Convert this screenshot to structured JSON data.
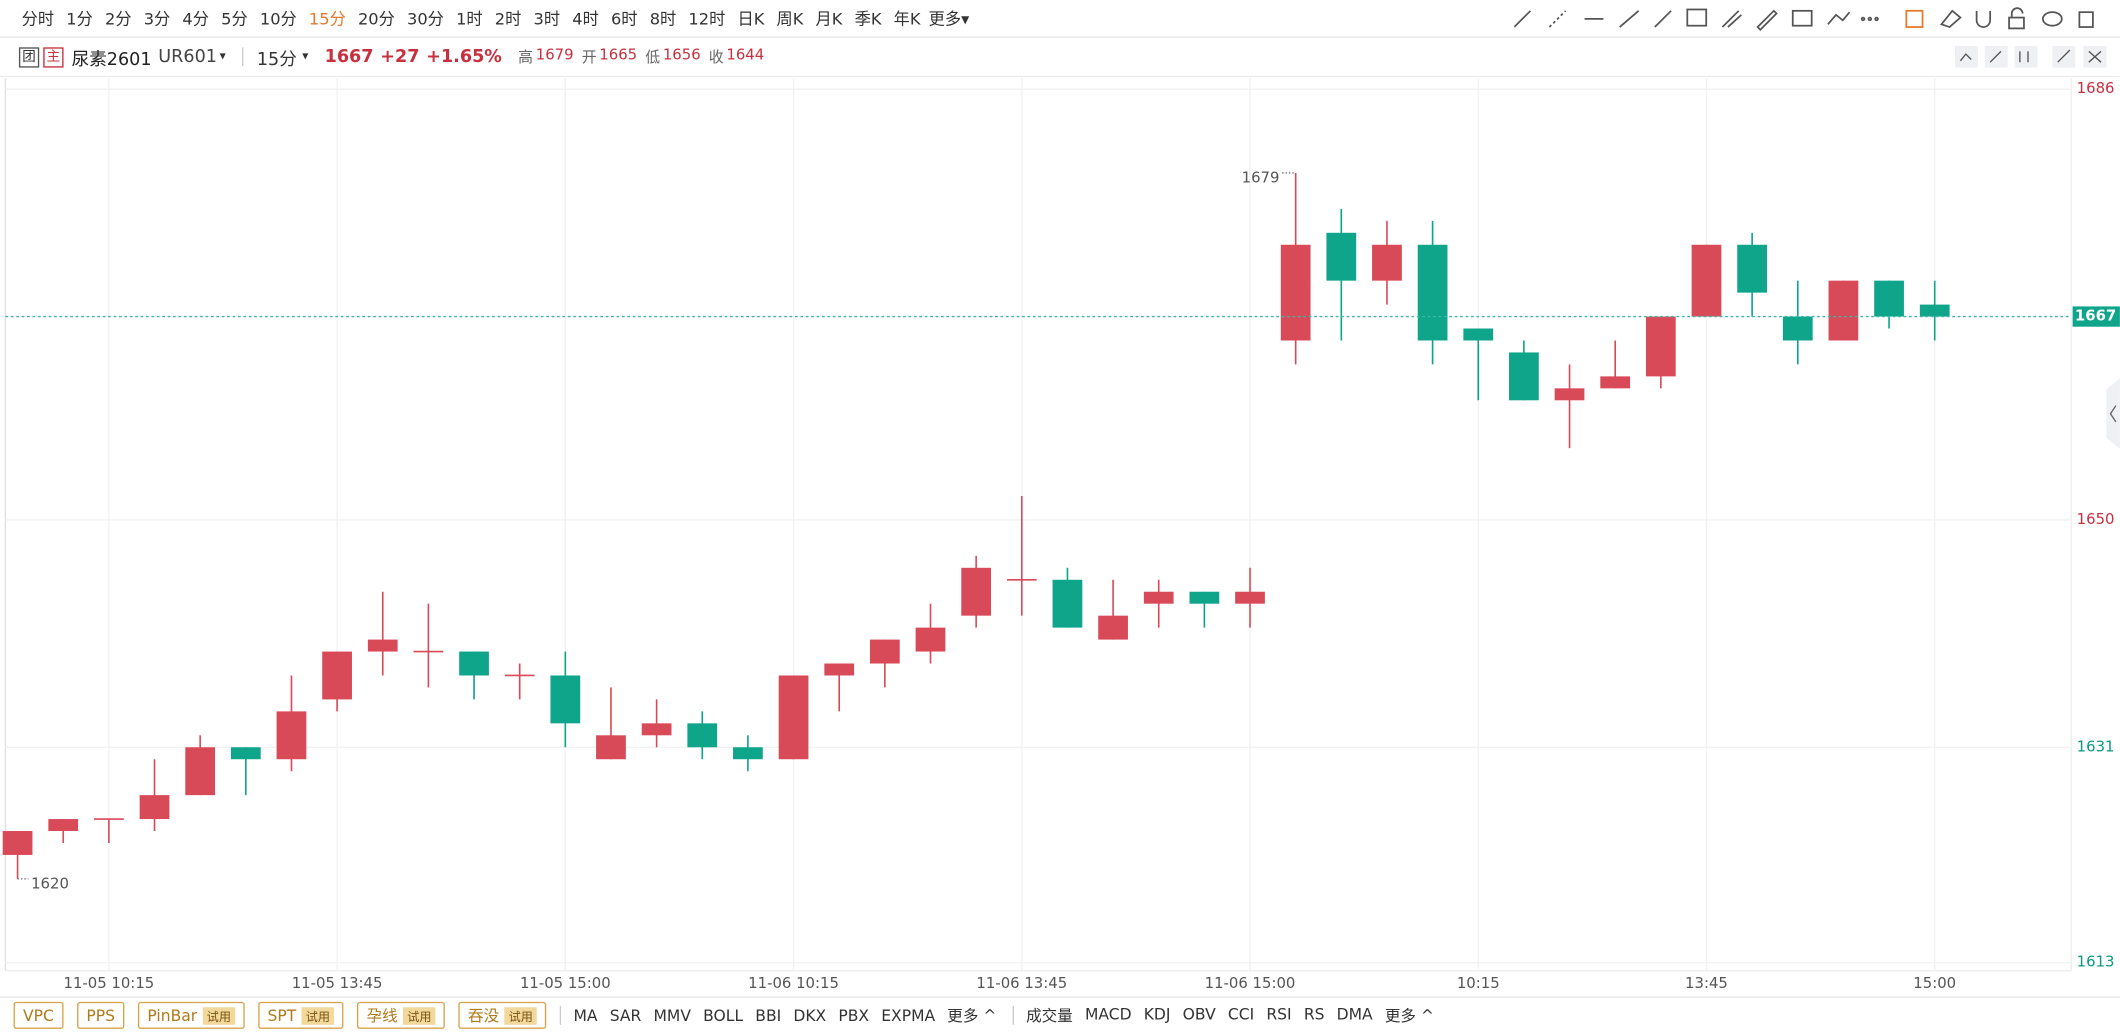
{
  "toolbar": {
    "periods": [
      "分时",
      "1分",
      "2分",
      "3分",
      "4分",
      "5分",
      "10分",
      "15分",
      "20分",
      "30分",
      "1时",
      "2时",
      "3时",
      "4时",
      "6时",
      "8时",
      "12时",
      "日K",
      "周K",
      "月K",
      "季K",
      "年K"
    ],
    "active_period": 7,
    "more": "更多"
  },
  "header": {
    "icons": [
      "团",
      "主"
    ],
    "name": "尿素2601",
    "code": "UR601",
    "period": "15分",
    "price": "1667",
    "change": "+27",
    "change_pct": "+1.65%",
    "stats": [
      {
        "label": "高",
        "value": "1679"
      },
      {
        "label": "开",
        "value": "1665"
      },
      {
        "label": "低",
        "value": "1656"
      },
      {
        "label": "收",
        "value": "1644"
      }
    ]
  },
  "chart_data": {
    "type": "candlestick",
    "categories": [
      null,
      null,
      "11-05 10:15",
      null,
      null,
      null,
      null,
      "11-05 13:45",
      null,
      null,
      null,
      null,
      "11-05 15:00",
      null,
      null,
      null,
      null,
      "11-06 10:15",
      null,
      null,
      null,
      null,
      "11-06 13:45",
      null,
      null,
      null,
      null,
      "11-06 15:00",
      null,
      null,
      null,
      null,
      "10:15",
      null,
      null,
      null,
      null,
      "13:45",
      null,
      null,
      null,
      null,
      "15:00"
    ],
    "candles": [
      {
        "open": 1622,
        "high": 1624,
        "low": 1620,
        "close": 1624
      },
      {
        "open": 1624,
        "high": 1625,
        "low": 1623,
        "close": 1625
      },
      {
        "open": 1625,
        "high": 1625,
        "low": 1623,
        "close": 1625
      },
      {
        "open": 1625,
        "high": 1630,
        "low": 1624,
        "close": 1627
      },
      {
        "open": 1627,
        "high": 1632,
        "low": 1627,
        "close": 1631
      },
      {
        "open": 1631,
        "high": 1631,
        "low": 1627,
        "close": 1630
      },
      {
        "open": 1630,
        "high": 1637,
        "low": 1629,
        "close": 1634
      },
      {
        "open": 1635,
        "high": 1639,
        "low": 1634,
        "close": 1639
      },
      {
        "open": 1639,
        "high": 1644,
        "low": 1637,
        "close": 1640
      },
      {
        "open": 1639,
        "high": 1643,
        "low": 1636,
        "close": 1639
      },
      {
        "open": 1639,
        "high": 1639,
        "low": 1635,
        "close": 1637
      },
      {
        "open": 1637,
        "high": 1638,
        "low": 1635,
        "close": 1637
      },
      {
        "open": 1637,
        "high": 1639,
        "low": 1631,
        "close": 1633
      },
      {
        "open": 1630,
        "high": 1636,
        "low": 1630,
        "close": 1632
      },
      {
        "open": 1632,
        "high": 1635,
        "low": 1631,
        "close": 1633
      },
      {
        "open": 1633,
        "high": 1634,
        "low": 1630,
        "close": 1631
      },
      {
        "open": 1631,
        "high": 1632,
        "low": 1629,
        "close": 1630
      },
      {
        "open": 1630,
        "high": 1637,
        "low": 1630,
        "close": 1637
      },
      {
        "open": 1637,
        "high": 1638,
        "low": 1634,
        "close": 1638
      },
      {
        "open": 1638,
        "high": 1640,
        "low": 1636,
        "close": 1640
      },
      {
        "open": 1639,
        "high": 1643,
        "low": 1638,
        "close": 1641
      },
      {
        "open": 1642,
        "high": 1647,
        "low": 1641,
        "close": 1646
      },
      {
        "open": 1645,
        "high": 1652,
        "low": 1642,
        "close": 1645
      },
      {
        "open": 1645,
        "high": 1646,
        "low": 1641,
        "close": 1641
      },
      {
        "open": 1640,
        "high": 1645,
        "low": 1640,
        "close": 1642
      },
      {
        "open": 1643,
        "high": 1645,
        "low": 1641,
        "close": 1644
      },
      {
        "open": 1644,
        "high": 1644,
        "low": 1641,
        "close": 1643
      },
      {
        "open": 1643,
        "high": 1646,
        "low": 1641,
        "close": 1644
      },
      {
        "open": 1665,
        "high": 1679,
        "low": 1663,
        "close": 1673
      },
      {
        "open": 1674,
        "high": 1676,
        "low": 1665,
        "close": 1670
      },
      {
        "open": 1670,
        "high": 1675,
        "low": 1668,
        "close": 1673
      },
      {
        "open": 1673,
        "high": 1675,
        "low": 1663,
        "close": 1665
      },
      {
        "open": 1666,
        "high": 1666,
        "low": 1660,
        "close": 1665
      },
      {
        "open": 1664,
        "high": 1665,
        "low": 1660,
        "close": 1660
      },
      {
        "open": 1660,
        "high": 1663,
        "low": 1656,
        "close": 1661
      },
      {
        "open": 1661,
        "high": 1665,
        "low": 1661,
        "close": 1662
      },
      {
        "open": 1662,
        "high": 1667,
        "low": 1661,
        "close": 1667
      },
      {
        "open": 1667,
        "high": 1673,
        "low": 1667,
        "close": 1673
      },
      {
        "open": 1673,
        "high": 1674,
        "low": 1667,
        "close": 1669
      },
      {
        "open": 1667,
        "high": 1670,
        "low": 1663,
        "close": 1665
      },
      {
        "open": 1665,
        "high": 1670,
        "low": 1665,
        "close": 1670
      },
      {
        "open": 1670,
        "high": 1670,
        "low": 1666,
        "close": 1667
      },
      {
        "open": 1668,
        "high": 1670,
        "low": 1665,
        "close": 1667
      }
    ],
    "ylim": [
      1613,
      1686
    ],
    "yticks": [
      1613,
      1631,
      1650,
      1686
    ],
    "ytick_colors": [
      "#0a9a84",
      "#0a9a84",
      "#c8303f",
      "#c8303f"
    ],
    "last_price": 1667,
    "up_color": "#d94a59",
    "down_color": "#0ea58b",
    "grid": true
  },
  "footer": {
    "patterns": [
      {
        "name": "VPC"
      },
      {
        "name": "PPS"
      },
      {
        "name": "PinBar",
        "tag": "试用"
      },
      {
        "name": "SPT",
        "tag": "试用"
      },
      {
        "name": "孕线",
        "tag": "试用"
      },
      {
        "name": "吞没",
        "tag": "试用"
      }
    ],
    "indicators_main": [
      "MA",
      "SAR",
      "MMV",
      "BOLL",
      "BBI",
      "DKX",
      "PBX",
      "EXPMA"
    ],
    "more_main": "更多",
    "indicators_sub": [
      "成交量",
      "MACD",
      "KDJ",
      "OBV",
      "CCI",
      "RSI",
      "RS",
      "DMA"
    ],
    "more_sub": "更多"
  }
}
